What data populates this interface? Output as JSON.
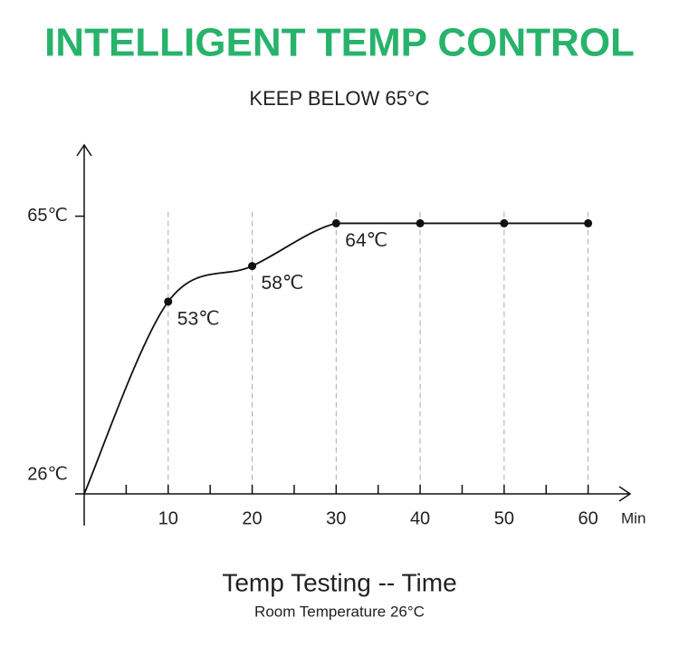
{
  "chart_data": {
    "type": "line",
    "title": "INTELLIGENT TEMP CONTROL",
    "subtitle": "KEEP BELOW 65°C",
    "x_label": "Min",
    "caption": "Temp Testing -- Time",
    "note": "Room Temperature 26°C",
    "x": [
      0,
      10,
      20,
      30,
      40,
      50,
      60
    ],
    "series": [
      {
        "color": "#111111",
        "values": [
          26,
          53,
          58,
          64,
          64,
          64,
          64
        ],
        "value_labels": [
          null,
          "53℃",
          "58℃",
          "64℃",
          null,
          null,
          null
        ]
      }
    ],
    "xlim": [
      0,
      65
    ],
    "xticks": [
      10,
      20,
      30,
      40,
      50,
      60
    ],
    "xminor_ticks": [
      5,
      15,
      25,
      35,
      45,
      55
    ],
    "ylim": [
      26,
      75
    ],
    "yticks": [
      {
        "value": 26,
        "label": "26℃"
      },
      {
        "value": 65,
        "label": "65℃"
      }
    ],
    "grid": "x",
    "title_color": "#27b36b"
  }
}
